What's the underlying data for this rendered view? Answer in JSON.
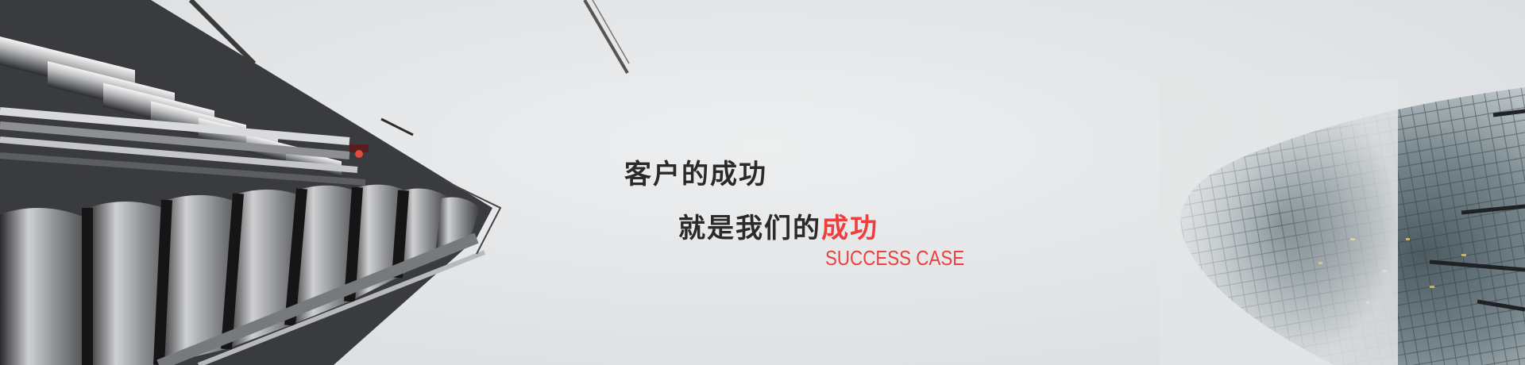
{
  "banner": {
    "headline": "客户的成功",
    "subline_prefix": "就是我们的",
    "subline_highlight": "成功",
    "case_label": "SUCCESS CASE"
  },
  "colors": {
    "accent": "#ee3f3f",
    "text": "#2a2a2a",
    "sky": "#e4e6e8"
  },
  "images": {
    "left": "lloyds-building-photo",
    "right": "gherkin-tower-photo",
    "top": "crane-arm-photo"
  }
}
